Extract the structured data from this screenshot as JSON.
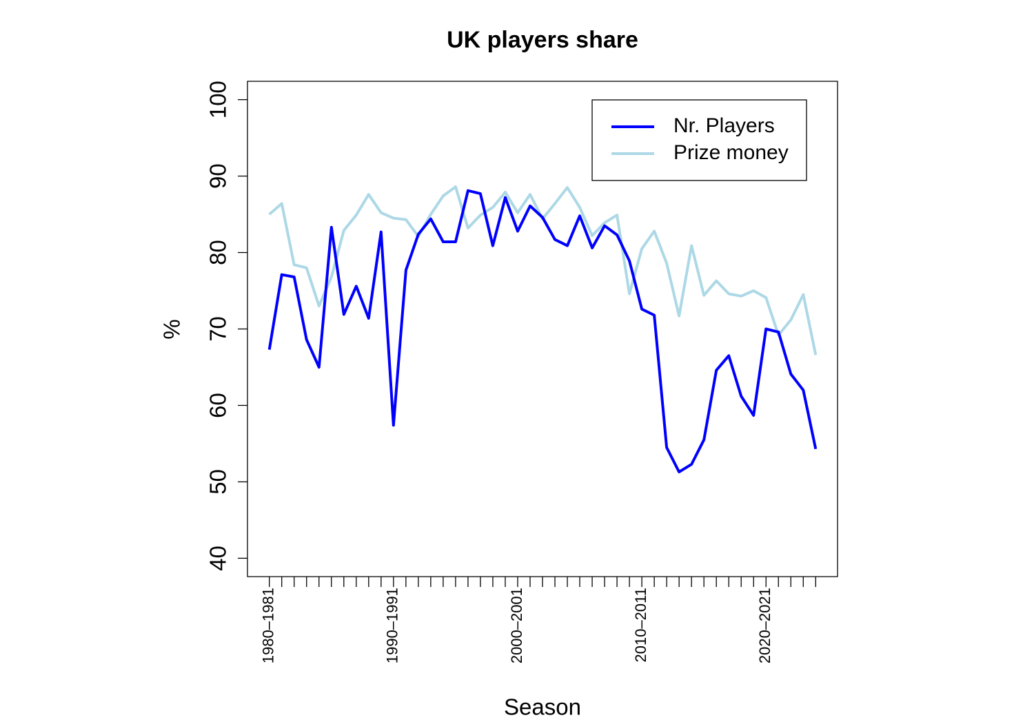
{
  "chart_data": {
    "type": "line",
    "title": "UK players share",
    "x_label": "Season",
    "y_label": "%",
    "categories": [
      "1980–1981",
      null,
      null,
      null,
      null,
      null,
      null,
      null,
      null,
      null,
      "1990–1991",
      null,
      null,
      null,
      null,
      null,
      null,
      null,
      null,
      null,
      "2000–2001",
      null,
      null,
      null,
      null,
      null,
      null,
      null,
      null,
      null,
      "2010–2011",
      null,
      null,
      null,
      null,
      null,
      null,
      null,
      null,
      null,
      "2020–2021",
      null,
      null,
      null,
      null
    ],
    "series": [
      {
        "name": "Nr. Players",
        "color": "#0000ff",
        "values": [
          67.3,
          77.1,
          76.8,
          68.6,
          65.0,
          83.3,
          71.9,
          75.6,
          71.4,
          82.7,
          57.4,
          77.7,
          82.4,
          84.4,
          81.4,
          81.4,
          88.1,
          87.7,
          80.9,
          87.2,
          82.8,
          86.1,
          84.6,
          81.7,
          80.9,
          84.8,
          80.6,
          83.5,
          82.3,
          78.9,
          72.6,
          71.8,
          54.5,
          51.3,
          52.3,
          55.5,
          64.6,
          66.5,
          61.2,
          58.7,
          70.0,
          69.6,
          64.1,
          62.0,
          54.3
        ]
      },
      {
        "name": "Prize money",
        "color": "#add8e6",
        "values": [
          85.0,
          86.4,
          78.4,
          78.0,
          73.0,
          76.8,
          82.9,
          84.9,
          87.6,
          85.2,
          84.5,
          84.3,
          82.1,
          85.0,
          87.4,
          88.6,
          83.2,
          84.9,
          85.9,
          87.9,
          85.2,
          87.6,
          84.4,
          86.4,
          88.5,
          85.9,
          82.2,
          83.9,
          84.9,
          74.6,
          80.5,
          82.8,
          78.6,
          71.7,
          80.9,
          74.4,
          76.3,
          74.6,
          74.3,
          75.0,
          74.1,
          69.2,
          71.2,
          74.5,
          66.6
        ]
      }
    ],
    "ylim": [
      37.6,
      102.4
    ],
    "yticks": [
      40,
      50,
      60,
      70,
      80,
      90,
      100
    ],
    "legend": "topright"
  }
}
